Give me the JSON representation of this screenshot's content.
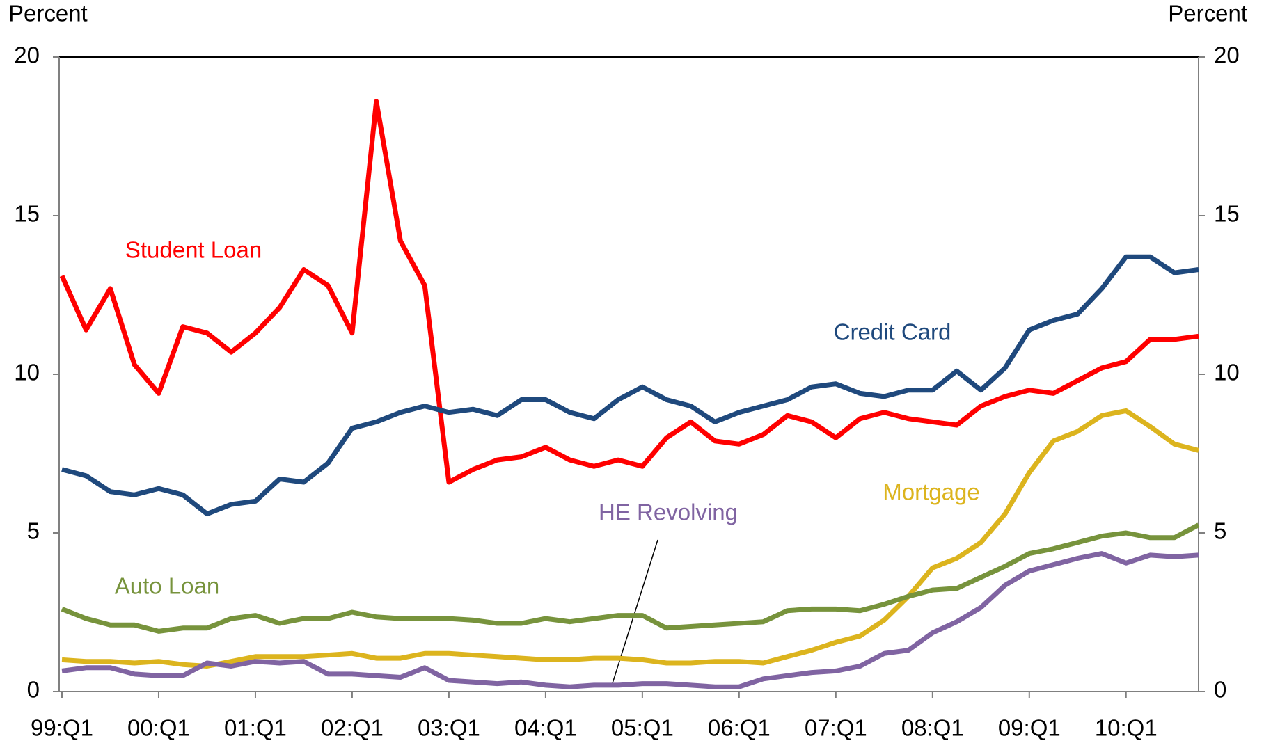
{
  "chart_data": {
    "type": "line",
    "y_label": "Percent",
    "categories": [
      "99:Q1",
      null,
      null,
      null,
      "00:Q1",
      null,
      null,
      null,
      "01:Q1",
      null,
      null,
      null,
      "02:Q1",
      null,
      null,
      null,
      "03:Q1",
      null,
      null,
      null,
      "04:Q1",
      null,
      null,
      null,
      "05:Q1",
      null,
      null,
      null,
      "06:Q1",
      null,
      null,
      null,
      "07:Q1",
      null,
      null,
      null,
      "08:Q1",
      null,
      null,
      null,
      "09:Q1",
      null,
      null,
      null,
      "10:Q1",
      null,
      null,
      null
    ],
    "ylim": [
      0,
      20
    ],
    "yticks": [
      0,
      5,
      10,
      15,
      20
    ],
    "grid": false,
    "series": [
      {
        "name": "Student Loan",
        "color": "#ff0000",
        "values": [
          13.1,
          11.4,
          12.7,
          10.3,
          9.4,
          11.5,
          11.3,
          10.7,
          11.3,
          12.1,
          13.3,
          12.8,
          11.3,
          18.6,
          14.2,
          12.8,
          6.6,
          7.0,
          7.3,
          7.4,
          7.7,
          7.3,
          7.1,
          7.3,
          7.1,
          8.0,
          8.5,
          7.9,
          7.8,
          8.1,
          8.7,
          8.5,
          8.0,
          8.6,
          8.8,
          8.6,
          8.5,
          8.4,
          9.0,
          9.3,
          9.5,
          9.4,
          9.8,
          10.2,
          10.4,
          11.1,
          11.1,
          11.2
        ]
      },
      {
        "name": "Credit Card",
        "color": "#1f497d",
        "values": [
          7.0,
          6.8,
          6.3,
          6.2,
          6.4,
          6.2,
          5.6,
          5.9,
          6.0,
          6.7,
          6.6,
          7.2,
          8.3,
          8.5,
          8.8,
          9.0,
          8.8,
          8.9,
          8.7,
          9.2,
          9.2,
          8.8,
          8.6,
          9.2,
          9.6,
          9.2,
          9.0,
          8.5,
          8.8,
          9.0,
          9.2,
          9.6,
          9.7,
          9.4,
          9.3,
          9.5,
          9.5,
          10.1,
          9.5,
          10.2,
          11.4,
          11.7,
          11.9,
          12.7,
          13.7,
          13.7,
          13.2,
          13.3
        ]
      },
      {
        "name": "Mortgage",
        "color": "#dcb41e",
        "values": [
          1.0,
          0.95,
          0.95,
          0.9,
          0.95,
          0.85,
          0.8,
          0.95,
          1.1,
          1.1,
          1.1,
          1.15,
          1.2,
          1.05,
          1.05,
          1.2,
          1.2,
          1.15,
          1.1,
          1.05,
          1.0,
          1.0,
          1.05,
          1.05,
          1.0,
          0.9,
          0.9,
          0.95,
          0.95,
          0.9,
          1.1,
          1.3,
          1.55,
          1.75,
          2.25,
          3.0,
          3.9,
          4.2,
          4.7,
          5.6,
          6.9,
          7.9,
          8.2,
          8.7,
          8.85,
          8.35,
          7.8,
          7.6
        ]
      },
      {
        "name": "HE Revolving",
        "color": "#8064a2",
        "values": [
          0.65,
          0.75,
          0.75,
          0.55,
          0.5,
          0.5,
          0.9,
          0.8,
          0.95,
          0.9,
          0.95,
          0.55,
          0.55,
          0.5,
          0.45,
          0.75,
          0.35,
          0.3,
          0.25,
          0.3,
          0.2,
          0.15,
          0.2,
          0.2,
          0.25,
          0.25,
          0.2,
          0.15,
          0.15,
          0.4,
          0.5,
          0.6,
          0.65,
          0.8,
          1.2,
          1.3,
          1.85,
          2.2,
          2.65,
          3.35,
          3.8,
          4.0,
          4.2,
          4.35,
          4.05,
          4.3,
          4.25,
          4.3
        ]
      },
      {
        "name": "Auto Loan",
        "color": "#77933c",
        "values": [
          2.6,
          2.3,
          2.1,
          2.1,
          1.9,
          2.0,
          2.0,
          2.3,
          2.4,
          2.15,
          2.3,
          2.3,
          2.5,
          2.35,
          2.3,
          2.3,
          2.3,
          2.25,
          2.15,
          2.15,
          2.3,
          2.2,
          2.3,
          2.4,
          2.4,
          2.0,
          2.05,
          2.1,
          2.15,
          2.2,
          2.55,
          2.6,
          2.6,
          2.55,
          2.75,
          3.0,
          3.2,
          3.25,
          3.6,
          3.95,
          4.35,
          4.5,
          4.7,
          4.9,
          5.0,
          4.85,
          4.85,
          5.25
        ]
      }
    ]
  }
}
